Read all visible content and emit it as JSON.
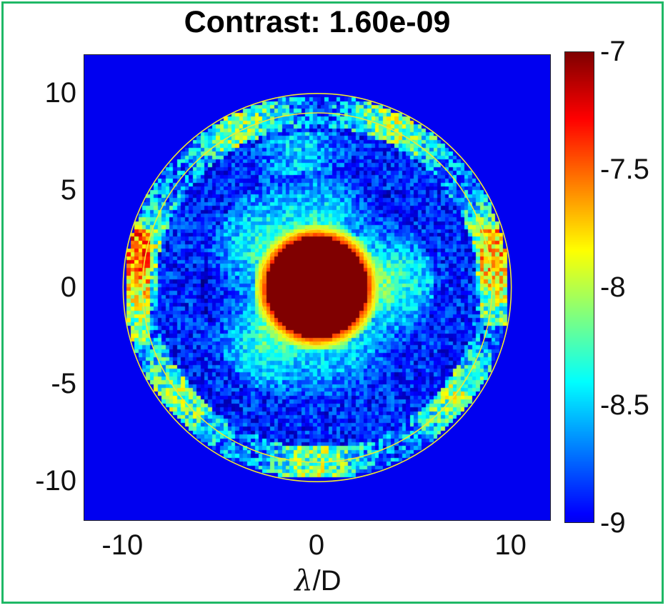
{
  "chart_data": {
    "type": "heatmap",
    "title": "Contrast: 1.60e-09",
    "xlabel": "λ/D",
    "ylabel": "",
    "xlim": [
      -12,
      12
    ],
    "ylim": [
      -12,
      12
    ],
    "xticks": [
      -10,
      0,
      10
    ],
    "yticks": [
      -10,
      -5,
      0,
      5,
      10
    ],
    "xtick_labels": [
      "-10",
      "0",
      "10"
    ],
    "ytick_labels": [
      "-10",
      "-5",
      "0",
      "5",
      "10"
    ],
    "colorbar": {
      "colormap": "jet",
      "range": [
        -9,
        -7
      ],
      "ticks": [
        -9,
        -8.5,
        -8,
        -7.5,
        -7
      ],
      "tick_labels": [
        "-9",
        "-8.5",
        "-8",
        "-7.5",
        "-7"
      ]
    },
    "overlays": [
      {
        "shape": "circle",
        "center": [
          0,
          0
        ],
        "radius": 3,
        "color": "#f2e830"
      },
      {
        "shape": "circle",
        "center": [
          0,
          0
        ],
        "radius": 9,
        "color": "#f2e830"
      },
      {
        "shape": "circle",
        "center": [
          0,
          0
        ],
        "radius": 10,
        "color": "#f2e830"
      }
    ],
    "features": {
      "core_radius": 2.6,
      "core_value": -7,
      "halo_radius": 6,
      "background_value": -9,
      "edge_ring_radius": 9
    },
    "grid": false
  }
}
